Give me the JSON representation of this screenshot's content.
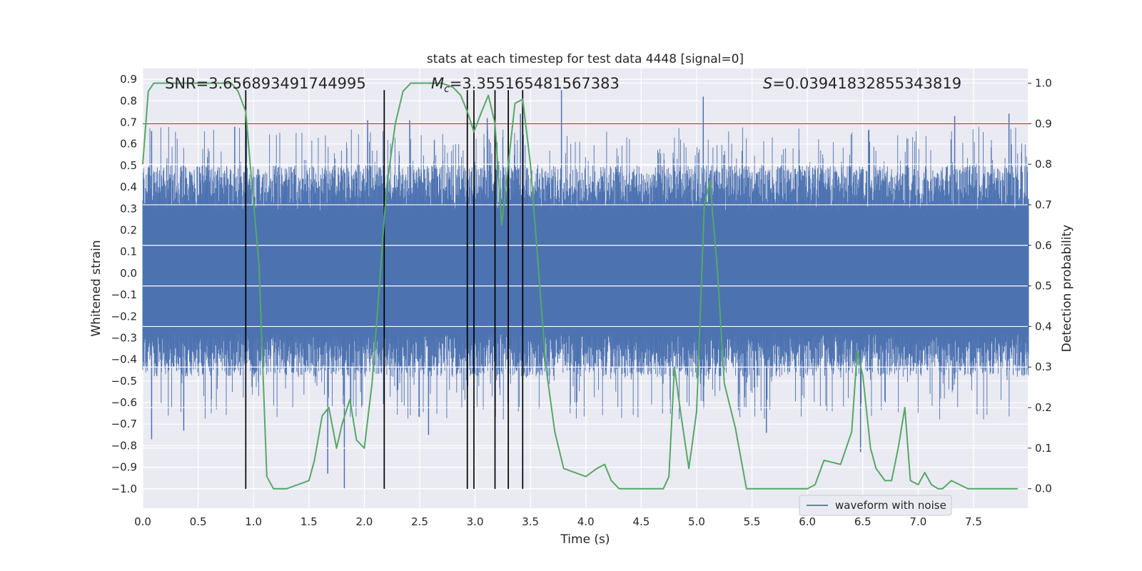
{
  "chart_data": {
    "type": "line",
    "title": "stats at each timestep for test data 4448 [signal=0]",
    "xlabel": "Time (s)",
    "ylabel": "Whitened strain",
    "y2label": "Detection probability",
    "xlim": [
      0.0,
      7.99
    ],
    "ylim": [
      -1.09,
      0.95
    ],
    "y2lim": [
      -0.048,
      1.036
    ],
    "xticks": [
      "0.0",
      "0.5",
      "1.0",
      "1.5",
      "2.0",
      "2.5",
      "3.0",
      "3.5",
      "4.0",
      "4.5",
      "5.0",
      "5.5",
      "6.0",
      "6.5",
      "7.0",
      "7.5"
    ],
    "yticks": [
      "0.9",
      "0.8",
      "0.7",
      "0.6",
      "0.5",
      "0.4",
      "0.3",
      "0.2",
      "0.1",
      "0.0",
      "-0.1",
      "-0.2",
      "-0.3",
      "-0.4",
      "-0.5",
      "-0.6",
      "-0.7",
      "-0.8",
      "-0.9",
      "-1.0"
    ],
    "y2ticks": [
      "1.0",
      "0.9",
      "0.8",
      "0.7",
      "0.6",
      "0.5",
      "0.4",
      "0.3",
      "0.2",
      "0.1",
      "0.0"
    ],
    "grid": true,
    "legend": {
      "position": "bottom-right",
      "entries": [
        "waveform with noise"
      ]
    },
    "annotations": {
      "snr": "SNR=3.656893491744995",
      "mc_symbol": "M",
      "mc_sub": "c",
      "mc_value": "=3.355165481567383",
      "s_symbol": "S",
      "s_value": "=0.03941832855343819"
    },
    "threshold_line": {
      "axis": "y2",
      "value": 0.9,
      "color": "#c44e52"
    },
    "vertical_markers": {
      "times": [
        0.93,
        2.18,
        2.93,
        2.99,
        3.18,
        3.3,
        3.43
      ],
      "ymin": -1.0,
      "ymax": 0.85,
      "color": "#000000"
    },
    "waveform": {
      "name": "waveform with noise",
      "color": "#4c72b0",
      "duration_s": 8.0,
      "core_amplitude_range": [
        -0.28,
        0.29
      ],
      "typical_envelope": [
        -0.48,
        0.5
      ],
      "notable_peaks": [
        {
          "x": 0.08,
          "y": 0.66
        },
        {
          "x": 0.83,
          "y": 0.68
        },
        {
          "x": 2.03,
          "y": 0.71
        },
        {
          "x": 2.41,
          "y": 0.71
        },
        {
          "x": 3.11,
          "y": 0.72
        },
        {
          "x": 3.41,
          "y": 0.74
        },
        {
          "x": 3.78,
          "y": 0.85
        },
        {
          "x": 5.06,
          "y": 0.82
        },
        {
          "x": 7.33,
          "y": 0.73
        },
        {
          "x": 7.82,
          "y": 0.74
        }
      ],
      "notable_troughs": [
        {
          "x": 0.08,
          "y": -0.77
        },
        {
          "x": 0.37,
          "y": -0.73
        },
        {
          "x": 1.67,
          "y": -0.93
        },
        {
          "x": 1.82,
          "y": -1.0
        },
        {
          "x": 2.58,
          "y": -0.75
        },
        {
          "x": 5.63,
          "y": -0.74
        },
        {
          "x": 6.48,
          "y": -0.83
        }
      ]
    },
    "probability_series": {
      "name": "Detection probability",
      "color": "#55a868",
      "axis": "y2",
      "x": [
        0.0,
        0.05,
        0.1,
        0.2,
        0.4,
        0.6,
        0.8,
        0.86,
        0.93,
        0.97,
        1.05,
        1.12,
        1.18,
        1.25,
        1.3,
        1.4,
        1.5,
        1.55,
        1.62,
        1.68,
        1.75,
        1.8,
        1.87,
        1.93,
        2.0,
        2.07,
        2.15,
        2.2,
        2.28,
        2.35,
        2.42,
        2.5,
        2.6,
        2.7,
        2.8,
        2.87,
        2.93,
        2.99,
        3.06,
        3.12,
        3.18,
        3.24,
        3.3,
        3.36,
        3.43,
        3.5,
        3.57,
        3.64,
        3.72,
        3.8,
        4.0,
        4.1,
        4.17,
        4.23,
        4.3,
        4.4,
        4.5,
        4.6,
        4.7,
        4.75,
        4.8,
        4.86,
        4.93,
        5.0,
        5.07,
        5.12,
        5.19,
        5.25,
        5.35,
        5.45,
        5.6,
        5.8,
        6.0,
        6.07,
        6.15,
        6.3,
        6.4,
        6.45,
        6.5,
        6.57,
        6.62,
        6.7,
        6.76,
        6.82,
        6.88,
        6.93,
        7.0,
        7.06,
        7.12,
        7.18,
        7.22,
        7.3,
        7.45,
        7.55,
        7.75,
        7.9
      ],
      "y": [
        0.8,
        0.98,
        1.0,
        1.0,
        1.0,
        1.0,
        1.0,
        0.98,
        0.93,
        0.8,
        0.55,
        0.03,
        0.0,
        0.0,
        0.0,
        0.01,
        0.02,
        0.07,
        0.18,
        0.2,
        0.1,
        0.16,
        0.22,
        0.12,
        0.1,
        0.26,
        0.55,
        0.74,
        0.9,
        0.98,
        1.0,
        1.0,
        1.0,
        1.0,
        0.99,
        0.97,
        0.93,
        0.88,
        0.93,
        0.97,
        0.9,
        0.65,
        0.8,
        0.95,
        0.96,
        0.8,
        0.55,
        0.3,
        0.14,
        0.05,
        0.03,
        0.05,
        0.06,
        0.02,
        0.0,
        0.0,
        0.0,
        0.0,
        0.0,
        0.03,
        0.3,
        0.18,
        0.05,
        0.19,
        0.7,
        0.76,
        0.53,
        0.26,
        0.15,
        0.0,
        0.0,
        0.0,
        0.0,
        0.01,
        0.07,
        0.06,
        0.14,
        0.34,
        0.28,
        0.1,
        0.05,
        0.02,
        0.02,
        0.1,
        0.2,
        0.02,
        0.01,
        0.04,
        0.01,
        0.0,
        0.0,
        0.02,
        0.0,
        0.0,
        0.0,
        0.0
      ]
    }
  }
}
